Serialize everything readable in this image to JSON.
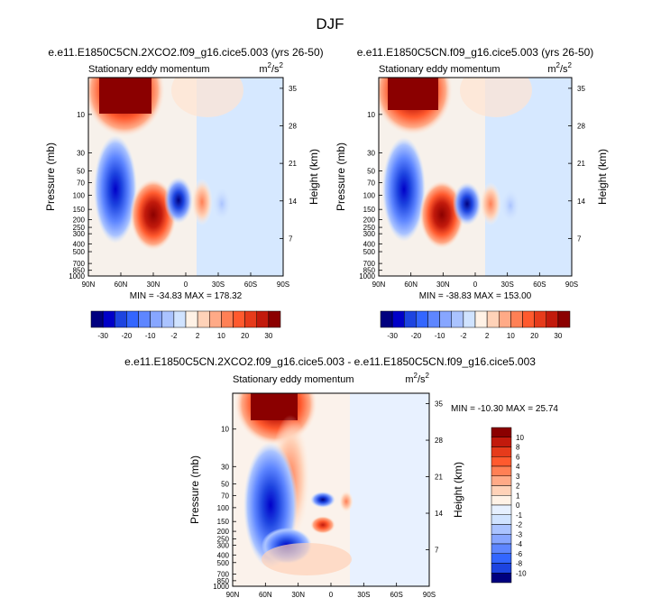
{
  "page_title": "DJF",
  "colors": {
    "palette": [
      "#00007f",
      "#0000c8",
      "#1d44e0",
      "#3366ff",
      "#5e86ff",
      "#87a6ff",
      "#aac3ff",
      "#d0e3ff",
      "#fff2e6",
      "#ffd2b8",
      "#ffaa87",
      "#ff8055",
      "#ff5a2e",
      "#e63b1b",
      "#c21a0c",
      "#8b0000"
    ]
  },
  "chart_data": [
    {
      "type": "heatmap",
      "case_title": "e.e11.E1850C5CN.2XCO2.f09_g16.cice5.003 (yrs 26-50)",
      "left_label": "Stationary eddy momentum",
      "units": "m",
      "units_sup": "2",
      "units_tail": "/s",
      "units_sup2": "2",
      "ylabel": "Pressure (mb)",
      "y2label": "Height (km)",
      "xlim": [
        90,
        -90
      ],
      "x_ticks": [
        "90N",
        "60N",
        "30N",
        "0",
        "30S",
        "60S",
        "90S"
      ],
      "y_ticks": [
        "10",
        "30",
        "50",
        "70",
        "100",
        "150",
        "200",
        "250",
        "300",
        "400",
        "500",
        "700",
        "850",
        "1000"
      ],
      "y2_ticks": [
        "35",
        "28",
        "21",
        "14",
        "7"
      ],
      "stats": "MIN = -34.83   MAX = 178.32",
      "levels": [
        "-30",
        "-20",
        "-10",
        "-2",
        "2",
        "10",
        "20",
        "30"
      ],
      "features": [
        {
          "lat": 55,
          "p": 10,
          "value": 178.32
        },
        {
          "lat": 62,
          "p": 80,
          "value": -34.83
        },
        {
          "lat": 25,
          "p": 200,
          "value": 30
        },
        {
          "lat": 5,
          "p": 140,
          "value": -30
        },
        {
          "lat": -15,
          "p": 150,
          "value": 10
        }
      ]
    },
    {
      "type": "heatmap",
      "case_title": "e.e11.E1850C5CN.f09_g16.cice5.003 (yrs 26-50)",
      "left_label": "Stationary eddy momentum",
      "units": "m",
      "units_sup": "2",
      "units_tail": "/s",
      "units_sup2": "2",
      "ylabel": "Pressure (mb)",
      "y2label": "Height (km)",
      "xlim": [
        90,
        -90
      ],
      "x_ticks": [
        "90N",
        "60N",
        "30N",
        "0",
        "30S",
        "60S",
        "90S"
      ],
      "y_ticks": [
        "10",
        "30",
        "50",
        "70",
        "100",
        "150",
        "200",
        "250",
        "300",
        "400",
        "500",
        "700",
        "850",
        "1000"
      ],
      "y2_ticks": [
        "35",
        "28",
        "21",
        "14",
        "7"
      ],
      "stats": "MIN = -38.83   MAX = 153.00",
      "levels": [
        "-30",
        "-20",
        "-10",
        "-2",
        "2",
        "10",
        "20",
        "30"
      ],
      "features": [
        {
          "lat": 55,
          "p": 10,
          "value": 153.0
        },
        {
          "lat": 62,
          "p": 80,
          "value": -38.83
        },
        {
          "lat": 25,
          "p": 200,
          "value": 30
        },
        {
          "lat": 5,
          "p": 140,
          "value": -30
        },
        {
          "lat": -15,
          "p": 150,
          "value": 10
        }
      ]
    },
    {
      "type": "heatmap",
      "case_title": "e.e11.E1850C5CN.2XCO2.f09_g16.cice5.003 - e.e11.E1850C5CN.f09_g16.cice5.003",
      "left_label": "Stationary eddy momentum",
      "units": "m",
      "units_sup": "2",
      "units_tail": "/s",
      "units_sup2": "2",
      "ylabel": "Pressure (mb)",
      "y2label": "Height (km)",
      "xlim": [
        90,
        -90
      ],
      "x_ticks": [
        "90N",
        "60N",
        "30N",
        "0",
        "30S",
        "60S",
        "90S"
      ],
      "y_ticks": [
        "10",
        "30",
        "50",
        "70",
        "100",
        "150",
        "200",
        "250",
        "300",
        "400",
        "500",
        "700",
        "850",
        "1000"
      ],
      "y2_ticks": [
        "35",
        "28",
        "21",
        "14",
        "7"
      ],
      "stats": "MIN = -10.30   MAX =  25.74",
      "levels": [
        "10",
        "8",
        "6",
        "4",
        "3",
        "2",
        "1",
        "0",
        "-1",
        "-2",
        "-3",
        "-4",
        "-6",
        "-8",
        "-10"
      ],
      "features": [
        {
          "lat": 55,
          "p": 10,
          "value": 25.74
        },
        {
          "lat": 60,
          "p": 150,
          "value": -10.3
        },
        {
          "lat": 5,
          "p": 100,
          "value": -6
        },
        {
          "lat": 5,
          "p": 200,
          "value": 6
        }
      ]
    }
  ]
}
